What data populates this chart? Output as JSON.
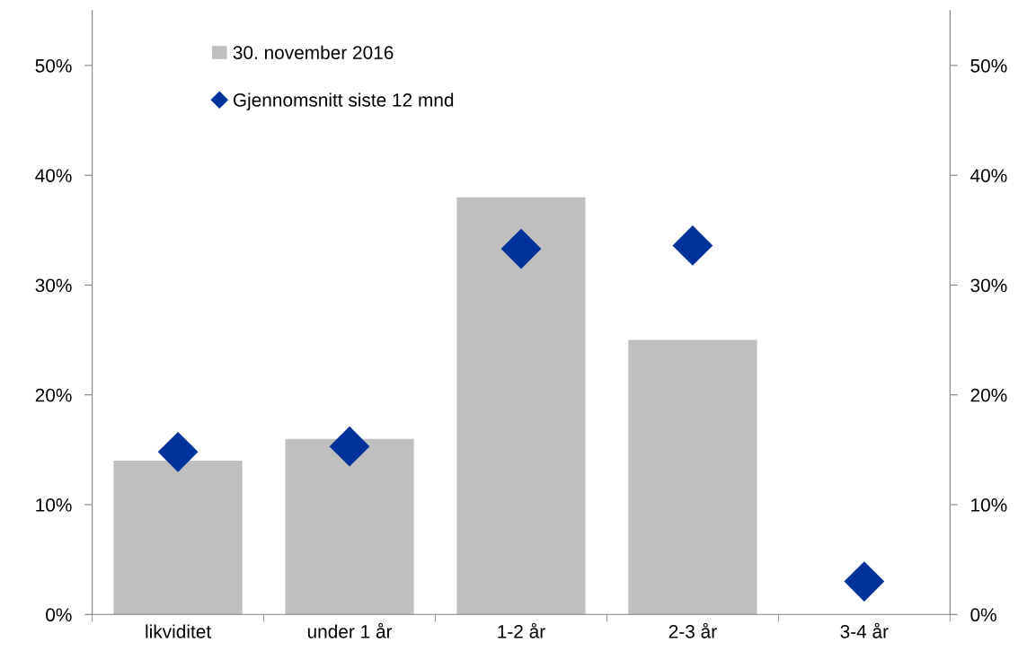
{
  "chart_data": {
    "type": "bar",
    "categories": [
      "likviditet",
      "under 1 år",
      "1-2 år",
      "2-3 år",
      "3-4 år"
    ],
    "series": [
      {
        "name": "30. november 2016",
        "color": "#bfbfbf",
        "values": [
          14,
          16,
          38,
          25,
          0
        ]
      },
      {
        "name": "Gjennomsnitt siste 12 mnd",
        "color": "#003399",
        "type": "scatter",
        "marker": "diamond",
        "values": [
          14.8,
          15.3,
          33.3,
          33.6,
          3.0
        ]
      }
    ],
    "ylim": [
      0,
      55
    ],
    "yticks": [
      {
        "value": 0,
        "label": "0%"
      },
      {
        "value": 10,
        "label": "10%"
      },
      {
        "value": 20,
        "label": "20%"
      },
      {
        "value": 30,
        "label": "30%"
      },
      {
        "value": 40,
        "label": "40%"
      },
      {
        "value": 50,
        "label": "50%"
      }
    ],
    "y2lim": [
      0,
      55
    ],
    "y2ticks": [
      {
        "value": 0,
        "label": "0%"
      },
      {
        "value": 10,
        "label": "10%"
      },
      {
        "value": 20,
        "label": "20%"
      },
      {
        "value": 30,
        "label": "30%"
      },
      {
        "value": 40,
        "label": "40%"
      },
      {
        "value": 50,
        "label": "50%"
      }
    ],
    "grid": false,
    "legend": "top left"
  }
}
